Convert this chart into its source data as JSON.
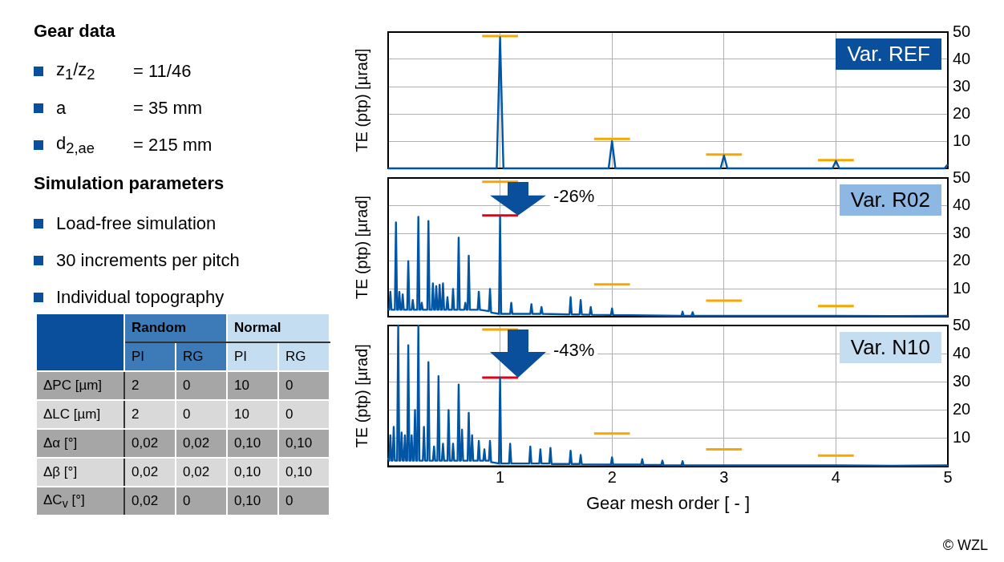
{
  "chart_data": [
    {
      "type": "other",
      "title": "Gear data",
      "categories": [
        "z$_{1}$/z$_{2}$",
        "a",
        "d$_{2,ae}$"
      ],
      "annotations": [
        "= 11/46",
        "= 35 mm",
        "= 215 mm"
      ]
    },
    {
      "type": "other",
      "title": "Simulation parameters",
      "annotations": [
        "Load-free simulation",
        "30 increments per pitch",
        "Individual topography"
      ]
    },
    {
      "type": "other",
      "annotations": [
        "Random",
        "Normal"
      ],
      "categories": [
        "PI",
        "RG",
        "PI",
        "RG"
      ],
      "y_categories": [
        "ΔPC [µm]",
        "ΔLC [µm]",
        "Δα [°]",
        "Δβ [°]",
        "ΔC$_{v}$ [°]"
      ],
      "cell_labels": [
        [
          "2",
          "0",
          "10",
          "0"
        ],
        [
          "2",
          "0",
          "10",
          "0"
        ],
        [
          "0,02",
          "0,02",
          "0,10",
          "0,10"
        ],
        [
          "0,02",
          "0,02",
          "0,10",
          "0,10"
        ],
        [
          "0,02",
          "0",
          "0,10",
          "0"
        ]
      ]
    },
    {
      "type": "line",
      "ylabel": "TE (ptp) [µrad]",
      "xlim": [
        0,
        5
      ],
      "xticks": [
        1,
        2,
        3,
        4,
        5
      ],
      "ylim": [
        0,
        50
      ],
      "yticks": [
        10,
        20,
        30,
        40,
        50
      ],
      "grid": true,
      "tick_labels": "y",
      "annotations": [
        "Var. REF"
      ],
      "series": [
        {
          "color": "#0055a4",
          "x": [
            0,
            0.97,
            1,
            1.03,
            1.97,
            2,
            2.03,
            2.97,
            3,
            3.03,
            3.97,
            4,
            4.03,
            4.97,
            5
          ],
          "values": [
            0,
            0,
            48,
            0,
            0,
            10,
            0,
            0,
            4.7,
            0,
            0,
            2.7,
            0,
            0,
            1.5
          ]
        },
        {
          "color": "#f5a800",
          "x": [
            0.84,
            1.16,
            1.5,
            1.84,
            2.16,
            2.5,
            2.84,
            3.16,
            3.5,
            3.84,
            4.16
          ],
          "values": [
            48.5,
            48.5,
            null,
            10.8,
            10.8,
            null,
            5.1,
            5.1,
            null,
            3,
            3
          ]
        }
      ]
    },
    {
      "type": "line",
      "ylabel": "TE (ptp) [µrad]",
      "xlim": [
        0,
        5
      ],
      "xticks": [
        1,
        2,
        3,
        4,
        5
      ],
      "ylim": [
        0,
        50
      ],
      "yticks": [
        10,
        20,
        30,
        40,
        50
      ],
      "grid": true,
      "tick_labels": "y",
      "annotations": [
        "Var. R02",
        "-26%"
      ],
      "series": [
        {
          "color": "#0055a4",
          "x": [
            0,
            0.01,
            0.02,
            0.03,
            0.06,
            0.07,
            0.08,
            0.09,
            0.1,
            0.11,
            0.12,
            0.13,
            0.14,
            0.17,
            0.18,
            0.19,
            0.21,
            0.22,
            0.23,
            0.26,
            0.27,
            0.28,
            0.29,
            0.3,
            0.31,
            0.35,
            0.36,
            0.37,
            0.39,
            0.4,
            0.41,
            0.42,
            0.43,
            0.44,
            0.45,
            0.46,
            0.47,
            0.48,
            0.49,
            0.5,
            0.52,
            0.53,
            0.54,
            0.57,
            0.58,
            0.59,
            0.62,
            0.63,
            0.64,
            0.68,
            0.69,
            0.7,
            0.71,
            0.72,
            0.73,
            0.8,
            0.81,
            0.82,
            0.9,
            0.91,
            0.92,
            0.99,
            1,
            1.01,
            1.09,
            1.1,
            1.11,
            1.27,
            1.28,
            1.29,
            1.36,
            1.37,
            1.38,
            1.62,
            1.63,
            1.64,
            1.71,
            1.72,
            1.73,
            1.8,
            1.81,
            1.82,
            1.99,
            2,
            2.01,
            2.62,
            2.63,
            2.64,
            2.71,
            2.72,
            2.73,
            3,
            3.5,
            4,
            4.5,
            5
          ],
          "values": [
            3,
            2.5,
            9,
            2.5,
            2.5,
            34,
            2.5,
            2.5,
            9,
            2.5,
            2.5,
            8,
            2.5,
            2.5,
            20,
            2.5,
            2.5,
            6,
            2.5,
            2.5,
            36,
            2.5,
            2.5,
            5,
            2.5,
            2.5,
            34.5,
            2.5,
            2.5,
            12,
            2.5,
            2.5,
            11,
            2.5,
            2.5,
            11.5,
            2.5,
            2.5,
            12,
            2.5,
            2.5,
            7,
            2.5,
            2.5,
            10,
            2.5,
            2.5,
            28.5,
            2.5,
            2.5,
            5,
            2.5,
            2.5,
            22,
            2.5,
            2.5,
            9,
            2.5,
            2,
            10,
            1.5,
            1,
            36,
            1,
            1,
            5,
            1,
            1,
            4.5,
            1,
            1,
            3.5,
            1,
            0.8,
            7,
            0.8,
            0.8,
            6,
            0.8,
            0.7,
            3.5,
            0.7,
            0.6,
            3,
            0.6,
            0.3,
            1.8,
            0.3,
            0.3,
            1.6,
            0.3,
            0.3,
            0.3,
            0.3,
            0.2,
            0.3
          ]
        },
        {
          "color": "#f5a800",
          "x": [
            0.84,
            1.16,
            1.5,
            1.84,
            2.16,
            2.5,
            2.84,
            3.16,
            3.5,
            3.84,
            4.16
          ],
          "values": [
            48.6,
            48.6,
            null,
            11.6,
            11.6,
            null,
            5.8,
            5.8,
            null,
            3.8,
            3.8
          ]
        },
        {
          "color": "#e2001a",
          "x": [
            0.84,
            1.16
          ],
          "values": [
            36.5,
            36.5
          ]
        }
      ]
    },
    {
      "type": "line",
      "ylabel": "TE (ptp) [µrad]",
      "xlabel": "Gear mesh order [ - ]",
      "xlim": [
        0,
        5
      ],
      "xticks": [
        1,
        2,
        3,
        4,
        5
      ],
      "ylim": [
        0,
        50
      ],
      "yticks": [
        10,
        20,
        30,
        40,
        50
      ],
      "grid": true,
      "annotations": [
        "Var. N10",
        "-43%",
        "© WZL"
      ],
      "series": [
        {
          "color": "#0055a4",
          "x": [
            0,
            0.01,
            0.02,
            0.03,
            0.04,
            0.05,
            0.06,
            0.08,
            0.09,
            0.1,
            0.11,
            0.12,
            0.13,
            0.14,
            0.15,
            0.16,
            0.17,
            0.18,
            0.19,
            0.2,
            0.21,
            0.22,
            0.23,
            0.24,
            0.25,
            0.26,
            0.27,
            0.28,
            0.31,
            0.32,
            0.33,
            0.35,
            0.36,
            0.37,
            0.4,
            0.41,
            0.42,
            0.44,
            0.45,
            0.46,
            0.48,
            0.49,
            0.5,
            0.53,
            0.54,
            0.55,
            0.57,
            0.58,
            0.59,
            0.62,
            0.63,
            0.64,
            0.65,
            0.66,
            0.67,
            0.71,
            0.72,
            0.73,
            0.74,
            0.75,
            0.76,
            0.8,
            0.81,
            0.82,
            0.85,
            0.86,
            0.87,
            0.9,
            0.91,
            0.92,
            0.99,
            1,
            1.01,
            1.08,
            1.09,
            1.1,
            1.26,
            1.27,
            1.28,
            1.35,
            1.36,
            1.37,
            1.44,
            1.45,
            1.46,
            1.62,
            1.63,
            1.64,
            1.71,
            1.72,
            1.73,
            1.99,
            2,
            2.01,
            2.26,
            2.27,
            2.28,
            2.44,
            2.45,
            2.46,
            2.62,
            2.63,
            2.64,
            3,
            3.5,
            4,
            4.5,
            5
          ],
          "values": [
            3,
            2,
            11,
            2,
            2,
            14,
            2,
            2,
            50,
            2,
            2,
            12,
            2,
            2,
            11,
            2,
            2,
            43,
            2,
            2,
            11,
            2,
            2,
            20,
            2,
            2,
            50,
            2,
            2,
            14,
            2,
            2,
            37,
            2,
            2,
            7,
            2,
            2,
            32,
            2,
            2,
            8,
            2,
            2,
            20,
            2,
            2,
            8,
            2,
            2,
            29,
            2,
            2,
            13,
            2,
            2,
            19,
            2,
            2,
            11,
            2,
            2,
            9,
            2,
            2,
            6,
            2,
            2,
            9,
            1.5,
            1,
            31.5,
            1,
            1,
            8,
            1,
            1,
            7,
            1,
            1,
            6,
            1,
            1,
            6.5,
            0.8,
            0.8,
            5.5,
            0.8,
            0.8,
            4,
            0.7,
            0.6,
            3.2,
            0.6,
            0.6,
            2.5,
            0.5,
            0.5,
            2,
            0.4,
            0.3,
            1.8,
            0.3,
            0.3,
            0.3,
            0.3,
            0.2,
            0.3
          ]
        },
        {
          "color": "#f5a800",
          "x": [
            0.84,
            1.16,
            1.5,
            1.84,
            2.16,
            2.5,
            2.84,
            3.16,
            3.5,
            3.84,
            4.16
          ],
          "values": [
            48.6,
            48.6,
            null,
            11.6,
            11.6,
            null,
            6,
            6,
            null,
            3.8,
            3.8
          ]
        },
        {
          "color": "#e2001a",
          "x": [
            0.84,
            1.16
          ],
          "values": [
            31.5,
            31.5
          ]
        }
      ]
    }
  ]
}
